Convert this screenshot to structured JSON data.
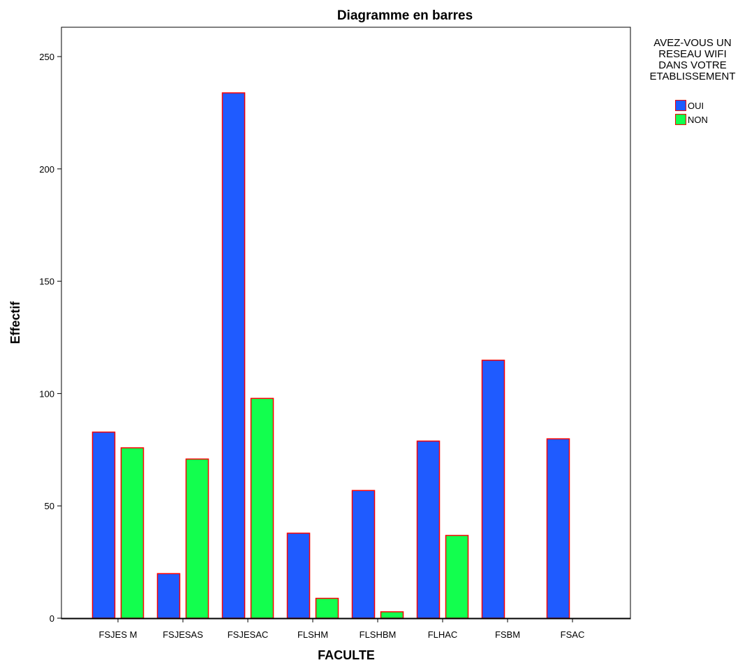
{
  "chart_data": {
    "type": "bar",
    "title": "Diagramme en barres",
    "xlabel": "FACULTE",
    "ylabel": "Effectif",
    "ylim": [
      0,
      262
    ],
    "yticks": [
      0,
      50,
      100,
      150,
      200,
      250
    ],
    "categories": [
      "FSJES M",
      "FSJESAS",
      "FSJESAC",
      "FLSHM",
      "FLSHBM",
      "FLHAC",
      "FSBM",
      "FSAC"
    ],
    "series": [
      {
        "name": "OUI",
        "color": "#1f5bff",
        "values": [
          83,
          20,
          234,
          38,
          57,
          79,
          115,
          80
        ]
      },
      {
        "name": "NON",
        "color": "#12ff4e",
        "values": [
          76,
          71,
          98,
          9,
          3,
          37,
          0,
          0
        ]
      }
    ],
    "bar_border_color": "#ff0000",
    "legend": {
      "title_lines": [
        "AVEZ-VOUS UN",
        "RESEAU WIFI",
        "DANS VOTRE",
        "ETABLISSEMENT"
      ],
      "placement": "right"
    },
    "grid": false
  }
}
